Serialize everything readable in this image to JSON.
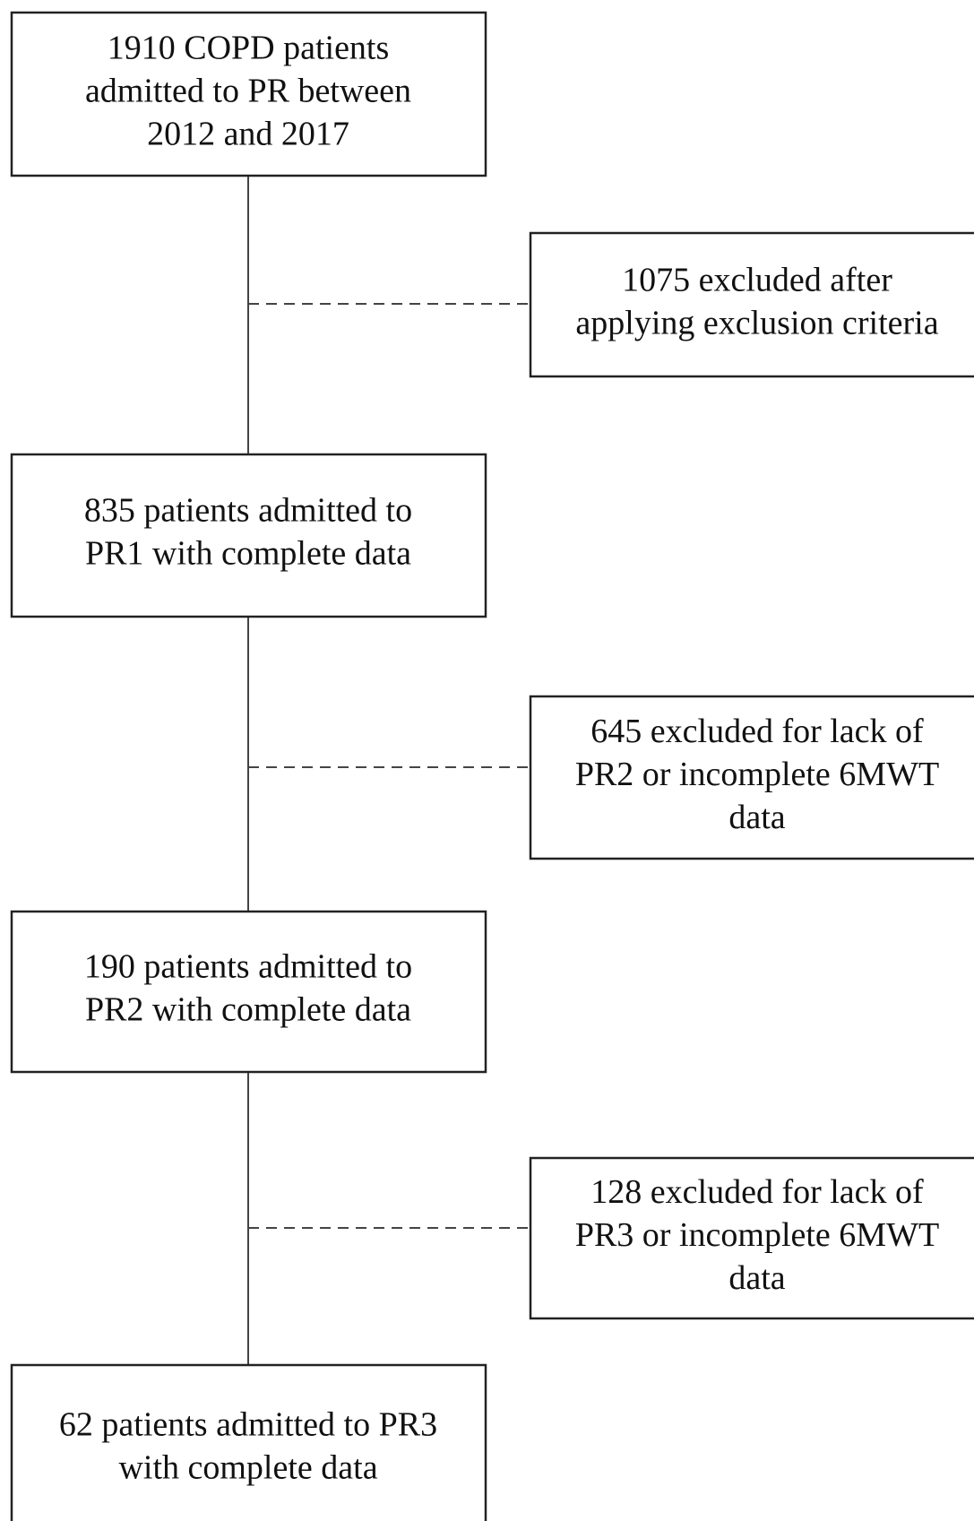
{
  "boxes": [
    {
      "lines": [
        "1910 COPD patients",
        "admitted to PR between",
        "2012 and 2017"
      ]
    },
    {
      "lines": [
        "835 patients admitted to",
        "PR1 with complete data"
      ]
    },
    {
      "lines": [
        "190 patients admitted to",
        "PR2 with complete data"
      ]
    },
    {
      "lines": [
        "62 patients admitted to PR3",
        "with complete data"
      ]
    }
  ],
  "exclusions": [
    {
      "lines": [
        "1075 excluded after",
        "applying exclusion criteria"
      ]
    },
    {
      "lines": [
        "645 excluded for lack of",
        "PR2 or incomplete 6MWT",
        "data"
      ]
    },
    {
      "lines": [
        "128 excluded for lack of",
        "PR3 or incomplete 6MWT",
        "data"
      ]
    }
  ]
}
